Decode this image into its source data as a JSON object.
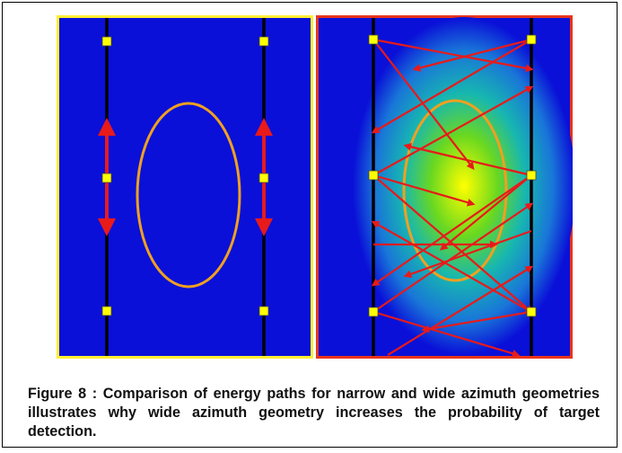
{
  "figure": {
    "caption": "Figure 8 : Comparison of energy paths for narrow and wide azimuth geometries illustrates why wide azimuth geometry increases the probability of target detection."
  },
  "panels": [
    {
      "id": "narrow-azimuth",
      "border_color": "#ffee33",
      "background": "#0a10d8",
      "target_color": "#f0a020"
    },
    {
      "id": "wide-azimuth",
      "border_color": "#e8341c",
      "background": "#0a10d8",
      "target_color": "#f0a020",
      "energy_color": "#e81a1a"
    }
  ],
  "colors": {
    "well": "#000000",
    "receiver": "#ffff00",
    "energy_path": "#e81a1a"
  }
}
